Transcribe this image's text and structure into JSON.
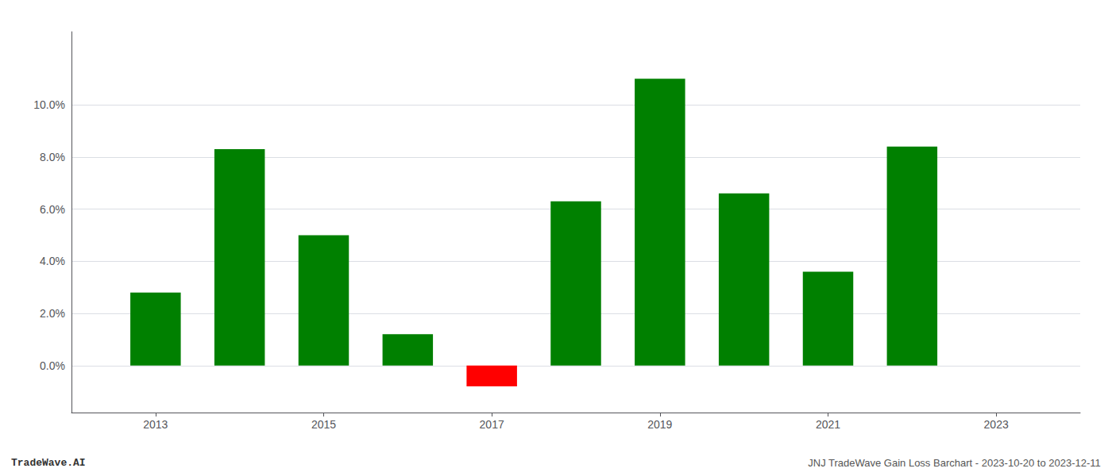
{
  "chart_data": {
    "type": "bar",
    "x": [
      2013,
      2014,
      2015,
      2016,
      2017,
      2018,
      2019,
      2020,
      2021,
      2022
    ],
    "values": [
      0.028,
      0.083,
      0.05,
      0.012,
      -0.008,
      0.063,
      0.11,
      0.066,
      0.036,
      0.084
    ],
    "colors": [
      "#008000",
      "#008000",
      "#008000",
      "#008000",
      "#ff0000",
      "#008000",
      "#008000",
      "#008000",
      "#008000",
      "#008000"
    ],
    "xlim": [
      2012.0,
      2024.0
    ],
    "xticks": [
      2013,
      2015,
      2017,
      2019,
      2021,
      2023
    ],
    "ylim": [
      -0.018,
      0.128
    ],
    "yticks": [
      {
        "value": 0.0,
        "label": "0.0%"
      },
      {
        "value": 0.02,
        "label": "2.0%"
      },
      {
        "value": 0.04,
        "label": "4.0%"
      },
      {
        "value": 0.06,
        "label": "6.0%"
      },
      {
        "value": 0.08,
        "label": "8.0%"
      },
      {
        "value": 0.1,
        "label": "10.0%"
      }
    ],
    "grid": true,
    "annotations": [
      "TradeWave.AI",
      "JNJ TradeWave Gain Loss Barchart - 2023-10-20 to 2023-12-11"
    ]
  }
}
